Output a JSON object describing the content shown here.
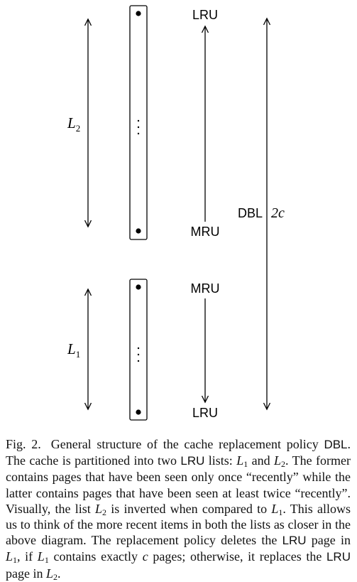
{
  "figure": {
    "l2_label": "L",
    "l2_sub": "2",
    "l1_label": "L",
    "l1_sub": "1",
    "l2_top_label": "LRU",
    "l2_bottom_label": "MRU",
    "l1_top_label": "MRU",
    "l1_bottom_label": "LRU",
    "dbl_label": "DBL",
    "dbl_size": "2c",
    "dots_glyph": "⋮"
  },
  "caption": {
    "fig_label": "Fig. 2.",
    "t1": "General structure of the cache replacement policy ",
    "dbl": "DBL",
    "t2": ". The cache is partitioned into two ",
    "lru1": "LRU",
    "t3": " lists: ",
    "L": "L",
    "s1": "1",
    "s2": "2",
    "and": " and ",
    "t4": ". The former contains pages that have been seen only once “recently” while the latter contains pages that have been seen at least twice “recently”. Visually, the list ",
    "t5": " is inverted when compared to ",
    "t6": ". This allows us to think of the more recent items in both the lists as closer in the above diagram. The replacement policy deletes the ",
    "lru2": "LRU",
    "t7": " page in ",
    "t8": ", if ",
    "t9": " contains exactly ",
    "c": "c",
    "t10": " pages; otherwise, it replaces the ",
    "lru3": "LRU",
    "t11": " page in ",
    "t12": "."
  }
}
